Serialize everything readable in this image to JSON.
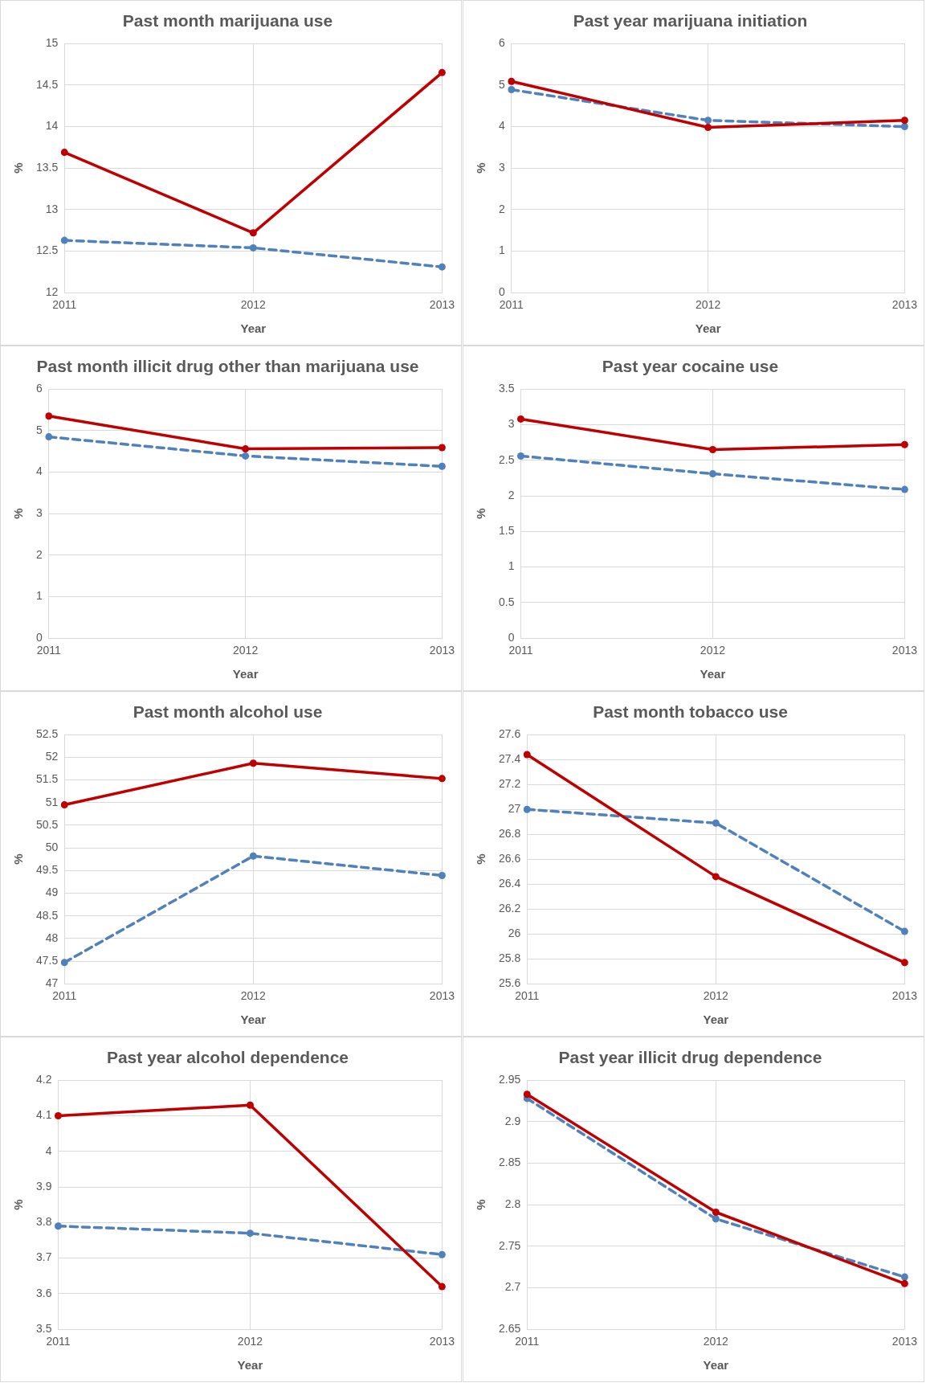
{
  "chart_data": [
    {
      "type": "line",
      "title": "Past month marijuana use",
      "xlabel": "Year",
      "ylabel": "%",
      "categories": [
        "2011",
        "2012",
        "2013"
      ],
      "ylim": [
        12,
        15
      ],
      "yticks": [
        12,
        12.5,
        13,
        13.5,
        14,
        14.5,
        15
      ],
      "grid": true,
      "marker": "circle",
      "series": [
        {
          "color": "#c00000",
          "line_style": "solid",
          "values": [
            13.69,
            12.72,
            14.65
          ]
        },
        {
          "color": "#4f81bd",
          "line_style": "dashed",
          "values": [
            12.63,
            12.54,
            12.31
          ]
        }
      ]
    },
    {
      "type": "line",
      "title": "Past year marijuana initiation",
      "xlabel": "Year",
      "ylabel": "%",
      "categories": [
        "2011",
        "2012",
        "2013"
      ],
      "ylim": [
        0,
        6
      ],
      "yticks": [
        0,
        1,
        2,
        3,
        4,
        5,
        6
      ],
      "grid": true,
      "marker": "circle",
      "series": [
        {
          "color": "#c00000",
          "line_style": "solid",
          "values": [
            5.09,
            3.98,
            4.15
          ]
        },
        {
          "color": "#4f81bd",
          "line_style": "dashed",
          "values": [
            4.89,
            4.15,
            4.0
          ]
        }
      ]
    },
    {
      "type": "line",
      "title": "Past month illicit drug other than marijuana use",
      "xlabel": "Year",
      "ylabel": "%",
      "categories": [
        "2011",
        "2012",
        "2013"
      ],
      "ylim": [
        0,
        6
      ],
      "yticks": [
        0,
        1,
        2,
        3,
        4,
        5,
        6
      ],
      "grid": true,
      "marker": "circle",
      "series": [
        {
          "color": "#c00000",
          "line_style": "solid",
          "values": [
            5.35,
            4.56,
            4.59
          ]
        },
        {
          "color": "#4f81bd",
          "line_style": "dashed",
          "values": [
            4.85,
            4.39,
            4.14
          ]
        }
      ]
    },
    {
      "type": "line",
      "title": "Past year cocaine use",
      "xlabel": "Year",
      "ylabel": "%",
      "categories": [
        "2011",
        "2012",
        "2013"
      ],
      "ylim": [
        0,
        3.5
      ],
      "yticks": [
        0,
        0.5,
        1,
        1.5,
        2,
        2.5,
        3,
        3.5
      ],
      "grid": true,
      "marker": "circle",
      "series": [
        {
          "color": "#c00000",
          "line_style": "solid",
          "values": [
            3.08,
            2.65,
            2.72
          ]
        },
        {
          "color": "#4f81bd",
          "line_style": "dashed",
          "values": [
            2.56,
            2.31,
            2.09
          ]
        }
      ]
    },
    {
      "type": "line",
      "title": "Past month alcohol use",
      "xlabel": "Year",
      "ylabel": "%",
      "categories": [
        "2011",
        "2012",
        "2013"
      ],
      "ylim": [
        47,
        52.5
      ],
      "yticks": [
        47,
        47.5,
        48,
        48.5,
        49,
        49.5,
        50,
        50.5,
        51,
        51.5,
        52,
        52.5
      ],
      "grid": true,
      "marker": "circle",
      "series": [
        {
          "color": "#c00000",
          "line_style": "solid",
          "values": [
            50.95,
            51.87,
            51.53
          ]
        },
        {
          "color": "#4f81bd",
          "line_style": "dashed",
          "values": [
            47.47,
            49.82,
            49.39
          ]
        }
      ]
    },
    {
      "type": "line",
      "title": "Past month tobacco use",
      "xlabel": "Year",
      "ylabel": "%",
      "categories": [
        "2011",
        "2012",
        "2013"
      ],
      "ylim": [
        25.6,
        27.6
      ],
      "yticks": [
        25.6,
        25.8,
        26,
        26.2,
        26.4,
        26.6,
        26.8,
        27,
        27.2,
        27.4,
        27.6
      ],
      "grid": true,
      "marker": "circle",
      "series": [
        {
          "color": "#c00000",
          "line_style": "solid",
          "values": [
            27.44,
            26.46,
            25.77
          ]
        },
        {
          "color": "#4f81bd",
          "line_style": "dashed",
          "values": [
            27.0,
            26.89,
            26.02
          ]
        }
      ]
    },
    {
      "type": "line",
      "title": "Past year alcohol dependence",
      "xlabel": "Year",
      "ylabel": "%",
      "categories": [
        "2011",
        "2012",
        "2013"
      ],
      "ylim": [
        3.5,
        4.2
      ],
      "yticks": [
        3.5,
        3.6,
        3.7,
        3.8,
        3.9,
        4,
        4.1,
        4.2
      ],
      "grid": true,
      "marker": "circle",
      "series": [
        {
          "color": "#c00000",
          "line_style": "solid",
          "values": [
            4.1,
            4.13,
            3.62
          ]
        },
        {
          "color": "#4f81bd",
          "line_style": "dashed",
          "values": [
            3.79,
            3.77,
            3.71
          ]
        }
      ]
    },
    {
      "type": "line",
      "title": "Past year illicit drug dependence",
      "xlabel": "Year",
      "ylabel": "%",
      "categories": [
        "2011",
        "2012",
        "2013"
      ],
      "ylim": [
        2.65,
        2.95
      ],
      "yticks": [
        2.65,
        2.7,
        2.75,
        2.8,
        2.85,
        2.9,
        2.95
      ],
      "grid": true,
      "marker": "circle",
      "series": [
        {
          "color": "#c00000",
          "line_style": "solid",
          "values": [
            2.933,
            2.791,
            2.705
          ]
        },
        {
          "color": "#4f81bd",
          "line_style": "dashed",
          "values": [
            2.928,
            2.783,
            2.713
          ]
        }
      ]
    }
  ]
}
